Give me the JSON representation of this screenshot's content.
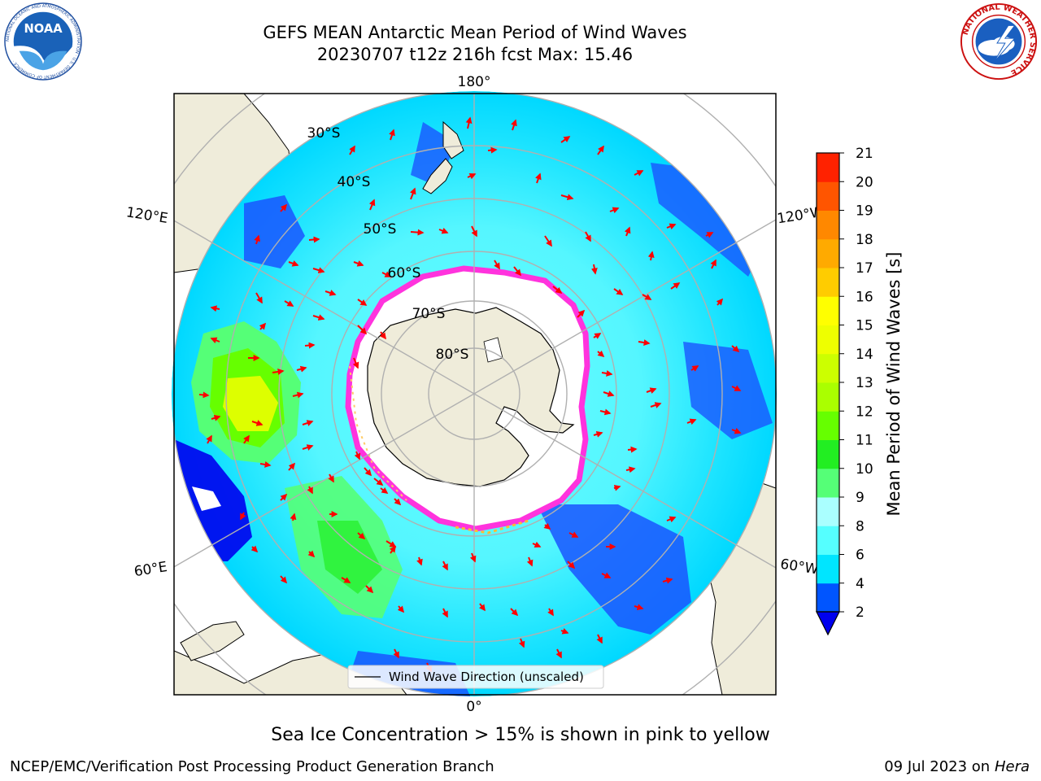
{
  "header": {
    "title_line1": "GEFS MEAN Antarctic Mean Period of Wind Waves",
    "title_line2": "20230707 t12z 216h fcst   Max: 15.46"
  },
  "logos": {
    "left": {
      "text": "NOAA",
      "ring_text": "NATIONAL OCEANIC AND ATMOSPHERIC ADMINISTRATION · U.S. DEPARTMENT OF COMMERCE ·"
    },
    "right": {
      "ring_text": "NATIONAL WEATHER SERVICE"
    }
  },
  "map": {
    "projection": "south-polar-stereographic",
    "longitude_labels": {
      "top": "180°",
      "bottom": "0°",
      "upper_left": "120°E",
      "upper_right": "120°W",
      "lower_left": "60°E",
      "lower_right": "60°W"
    },
    "latitude_labels": [
      "30°S",
      "40°S",
      "50°S",
      "60°S",
      "70°S",
      "80°S"
    ],
    "legend": "Wind Wave Direction (unscaled)",
    "colors": {
      "land": "#efecda",
      "sea_ice": "#ffffff",
      "ice_edge": "#ff33dd",
      "arrows": "#ff0000"
    }
  },
  "colorbar": {
    "label": "Mean Period of Wind Waves [s]",
    "ticks": [
      "2",
      "4",
      "6",
      "8",
      "9",
      "10",
      "11",
      "12",
      "13",
      "14",
      "15",
      "16",
      "17",
      "18",
      "19",
      "20",
      "21"
    ],
    "colors": [
      "#0055ff",
      "#00e5ff",
      "#55ffff",
      "#aaffff",
      "#55ff77",
      "#22ee22",
      "#66ff00",
      "#aaff00",
      "#ccff00",
      "#eeff00",
      "#ffff00",
      "#ffcc00",
      "#ffaa00",
      "#ff8800",
      "#ff5500",
      "#ff2200"
    ],
    "under_color": "#0000ee"
  },
  "footer": {
    "caption": "Sea Ice Concentration > 15% is shown in pink to yellow",
    "credit": "NCEP/EMC/Verification Post Processing Product Generation Branch",
    "date": "09 Jul 2023 on ",
    "machine": "Hera"
  }
}
